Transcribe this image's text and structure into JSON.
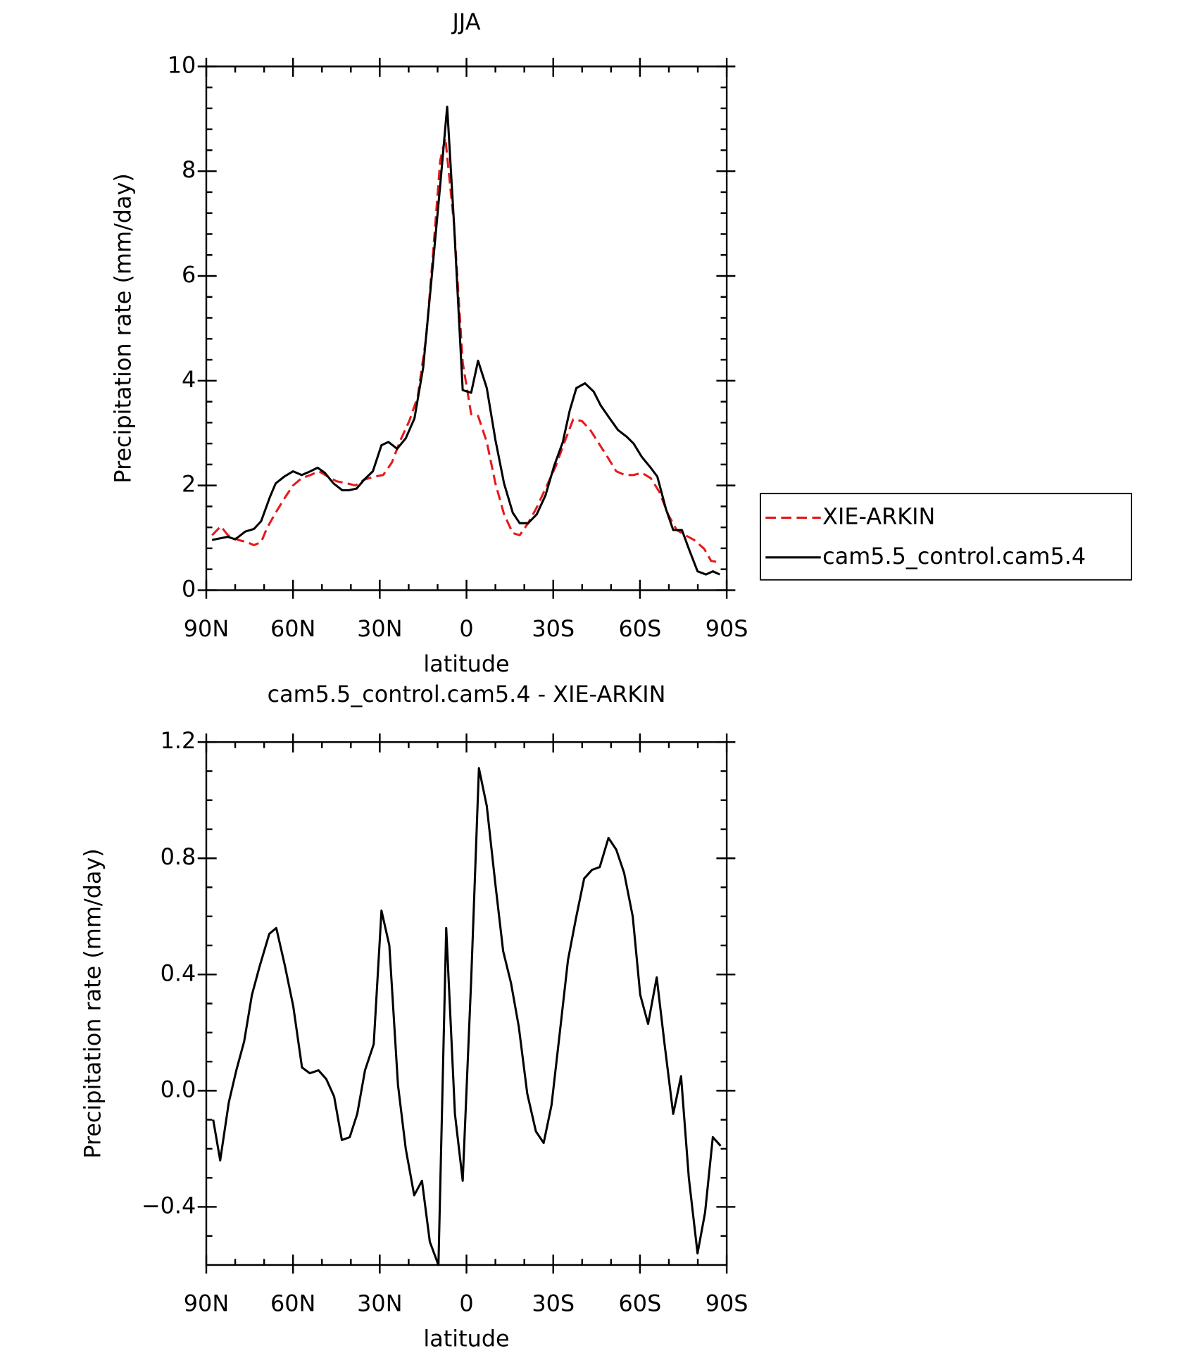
{
  "chart_data": [
    {
      "type": "line",
      "title": "JJA",
      "x_label": "latitude",
      "y_label": "Precipitation rate (mm/day)",
      "xlim": [
        90,
        -90
      ],
      "xticks": [
        {
          "value": 90,
          "label": "90N"
        },
        {
          "value": 60,
          "label": "60N"
        },
        {
          "value": 30,
          "label": "30N"
        },
        0,
        {
          "value": -30,
          "label": "30S"
        },
        {
          "value": -60,
          "label": "60S"
        },
        {
          "value": -90,
          "label": "90S"
        }
      ],
      "ylim": [
        0,
        10
      ],
      "yticks": [
        0,
        2,
        4,
        6,
        8,
        10
      ],
      "legend": "right",
      "series": [
        {
          "name": "XIE-ARKIN",
          "color": "#e41a1c",
          "dash": true,
          "x": [
            88,
            85,
            82.5,
            79,
            76,
            73.5,
            71,
            69,
            66,
            63,
            60,
            57,
            54,
            51,
            48,
            45,
            41.3,
            38.4,
            35.4,
            31.8,
            28.8,
            25.8,
            22.8,
            19.8,
            16.9,
            13.9,
            11.5,
            9.1,
            7.3,
            4.3,
            1.3,
            -1.6,
            -4,
            -7,
            -10,
            -13,
            -16,
            -18.4,
            -21.3,
            -24.3,
            -27.3,
            -30.9,
            -33.9,
            -36.9,
            -39.9,
            -42.8,
            -45.8,
            -48.8,
            -51.8,
            -54.8,
            -57.8,
            -60.7,
            -63.7,
            -66.7,
            -69.7,
            -72.7,
            -75.7,
            -78.7,
            -82.2,
            -84.6,
            -87.6
          ],
          "values": [
            1.05,
            1.22,
            1.05,
            0.96,
            0.92,
            0.86,
            0.92,
            1.19,
            1.48,
            1.75,
            2.0,
            2.14,
            2.2,
            2.27,
            2.17,
            2.08,
            2.04,
            2.0,
            2.11,
            2.17,
            2.2,
            2.44,
            2.87,
            3.23,
            3.69,
            4.84,
            6.49,
            8.2,
            8.63,
            6.98,
            4.35,
            3.36,
            3.33,
            2.83,
            2.04,
            1.45,
            1.09,
            1.05,
            1.28,
            1.58,
            1.94,
            2.37,
            2.83,
            3.26,
            3.23,
            3.06,
            2.8,
            2.54,
            2.27,
            2.2,
            2.2,
            2.24,
            2.14,
            1.88,
            1.45,
            1.15,
            1.05,
            0.96,
            0.79,
            0.56,
            0.53
          ]
        },
        {
          "name": "cam5.5_control.cam5.4",
          "color": "#000000",
          "dash": false,
          "x": [
            88,
            82.5,
            80,
            76.5,
            73.5,
            71,
            68,
            66,
            63,
            60,
            57,
            54,
            51.5,
            49,
            46,
            43,
            40.7,
            38,
            35.4,
            32.4,
            29.4,
            27,
            24,
            21,
            18,
            15,
            12,
            9,
            6.7,
            4.3,
            1.3,
            -1.6,
            -4,
            -7,
            -10,
            -13,
            -16,
            -18.4,
            -21.3,
            -24.3,
            -27.3,
            -30.3,
            -33.3,
            -35.7,
            -38,
            -41,
            -44,
            -46.4,
            -49.4,
            -52.4,
            -55.4,
            -57.8,
            -60.7,
            -63.7,
            -66,
            -69,
            -71.5,
            -74.5,
            -76.9,
            -79.9,
            -82.8,
            -85.2,
            -87.6
          ],
          "values": [
            0.96,
            1.02,
            0.97,
            1.12,
            1.17,
            1.32,
            1.78,
            2.04,
            2.17,
            2.27,
            2.2,
            2.27,
            2.34,
            2.24,
            2.04,
            1.91,
            1.91,
            1.94,
            2.11,
            2.27,
            2.77,
            2.83,
            2.7,
            2.9,
            3.28,
            4.25,
            6.0,
            7.8,
            9.23,
            6.98,
            3.82,
            3.77,
            4.38,
            3.86,
            2.87,
            2.04,
            1.48,
            1.28,
            1.28,
            1.45,
            1.81,
            2.37,
            2.83,
            3.43,
            3.86,
            3.95,
            3.79,
            3.53,
            3.29,
            3.06,
            2.93,
            2.8,
            2.54,
            2.34,
            2.17,
            1.55,
            1.15,
            1.15,
            0.79,
            0.36,
            0.3,
            0.36,
            0.3
          ]
        }
      ]
    },
    {
      "type": "line",
      "title": "cam5.5_control.cam5.4 - XIE-ARKIN",
      "x_label": "latitude",
      "y_label": "Precipitation rate (mm/day)",
      "xlim": [
        90,
        -90
      ],
      "xticks": [
        {
          "value": 90,
          "label": "90N"
        },
        {
          "value": 60,
          "label": "60N"
        },
        {
          "value": 30,
          "label": "30N"
        },
        0,
        {
          "value": -30,
          "label": "30S"
        },
        {
          "value": -60,
          "label": "60S"
        },
        {
          "value": -90,
          "label": "90S"
        }
      ],
      "ylim": [
        -0.6,
        1.2
      ],
      "yticks": [
        {
          "value": -0.4,
          "label": "−0.4"
        },
        {
          "value": 0,
          "label": "0.0"
        },
        0.4,
        0.8,
        1.2
      ],
      "series": [
        {
          "color": "#000000",
          "dash": false,
          "x": [
            87.6,
            85.2,
            82.2,
            79.6,
            76.9,
            74.2,
            71.5,
            68.2,
            65.8,
            62.8,
            59.9,
            56.9,
            54.2,
            51.2,
            48.5,
            45.8,
            43.1,
            40.4,
            37.8,
            35.1,
            32.1,
            29.4,
            26.7,
            23.7,
            21.0,
            18.1,
            15.4,
            12.7,
            9.7,
            7.0,
            4.0,
            1.3,
            -1.6,
            -4.3,
            -7.0,
            -10.0,
            -12.7,
            -15.4,
            -18.1,
            -21.0,
            -24.0,
            -26.7,
            -29.4,
            -32.4,
            -35.1,
            -37.8,
            -40.7,
            -43.4,
            -46.1,
            -49.1,
            -51.8,
            -54.5,
            -57.5,
            -60.1,
            -62.8,
            -65.8,
            -68.5,
            -71.5,
            -74.2,
            -76.9,
            -79.9,
            -82.5,
            -85.2,
            -87.9
          ],
          "values": [
            -0.1,
            -0.24,
            -0.04,
            0.07,
            0.17,
            0.33,
            0.43,
            0.54,
            0.56,
            0.43,
            0.29,
            0.08,
            0.06,
            0.07,
            0.04,
            -0.02,
            -0.17,
            -0.16,
            -0.08,
            0.07,
            0.16,
            0.62,
            0.5,
            0.02,
            -0.2,
            -0.36,
            -0.31,
            -0.52,
            -0.6,
            0.56,
            -0.08,
            -0.31,
            0.38,
            1.11,
            0.98,
            0.71,
            0.48,
            0.37,
            0.22,
            -0.01,
            -0.14,
            -0.18,
            -0.05,
            0.21,
            0.45,
            0.59,
            0.73,
            0.76,
            0.77,
            0.87,
            0.83,
            0.75,
            0.6,
            0.33,
            0.23,
            0.39,
            0.16,
            -0.08,
            0.05,
            -0.3,
            -0.56,
            -0.42,
            -0.16,
            -0.19
          ]
        }
      ]
    }
  ]
}
